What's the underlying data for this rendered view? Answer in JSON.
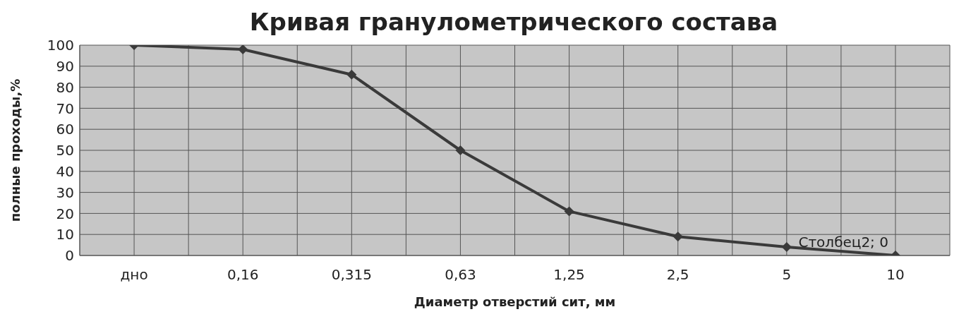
{
  "chart_data": {
    "type": "line",
    "title": "Кривая гранулометрического состава",
    "xlabel": "Диаметр отверстий сит, мм",
    "ylabel": "полные проходы,%",
    "categories": [
      "дно",
      "0,16",
      "0,315",
      "0,63",
      "1,25",
      "2,5",
      "5",
      "10"
    ],
    "series": [
      {
        "color": "#3a3a3a",
        "values": [
          100,
          98,
          86,
          50,
          21,
          9,
          4,
          0
        ],
        "value_labels": [
          null,
          null,
          null,
          null,
          null,
          null,
          null,
          "Столбец2; 0"
        ]
      }
    ],
    "ylim": [
      0,
      100
    ],
    "yticks": [
      0,
      10,
      20,
      30,
      40,
      50,
      60,
      70,
      80,
      90,
      100
    ],
    "grid": true,
    "marker": "diamond",
    "line_style": "solid"
  }
}
